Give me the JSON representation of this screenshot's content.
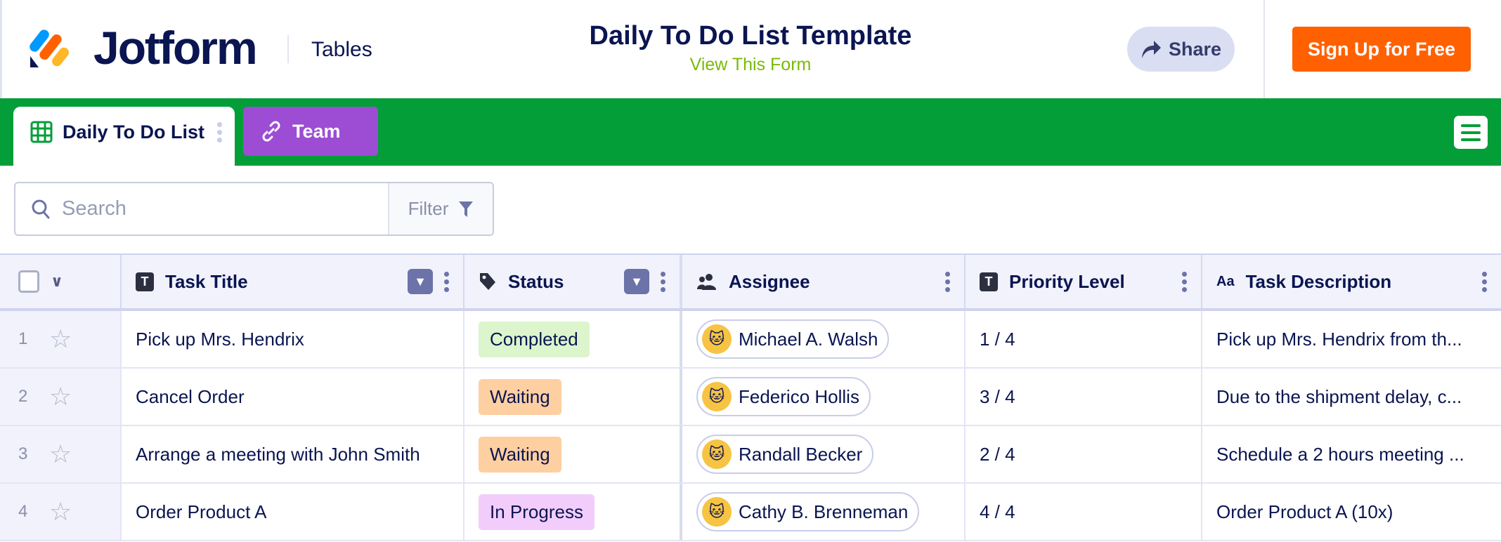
{
  "header": {
    "brand": "Jotform",
    "product": "Tables",
    "title": "Daily To Do List Template",
    "subtitle": "View This Form",
    "share": "Share",
    "signup": "Sign Up for Free"
  },
  "tabs": [
    {
      "label": "Daily To Do List",
      "icon": "grid-icon"
    },
    {
      "label": "Team",
      "icon": "link-icon"
    }
  ],
  "toolbar": {
    "search_placeholder": "Search",
    "filter": "Filter"
  },
  "colors": {
    "green": "#049e38",
    "purple": "#9c4dd3",
    "orange": "#ff6100",
    "completed": "#dcf5cc",
    "waiting": "#fecfa1",
    "in_progress": "#f2cdfb"
  },
  "table": {
    "columns": [
      "Task Title",
      "Status",
      "Assignee",
      "Priority Level",
      "Task Description"
    ],
    "rows": [
      {
        "n": "1",
        "title": "Pick up Mrs. Hendrix",
        "status": "Completed",
        "assignee": "Michael A. Walsh",
        "priority": "1 / 4",
        "desc": "Pick up Mrs. Hendrix from th..."
      },
      {
        "n": "2",
        "title": "Cancel Order",
        "status": "Waiting",
        "assignee": "Federico Hollis",
        "priority": "3 / 4",
        "desc": "Due to the shipment delay, c..."
      },
      {
        "n": "3",
        "title": "Arrange a meeting with John Smith",
        "status": "Waiting",
        "assignee": "Randall Becker",
        "priority": "2 / 4",
        "desc": "Schedule a 2 hours meeting ..."
      },
      {
        "n": "4",
        "title": "Order Product A",
        "status": "In Progress",
        "assignee": "Cathy B. Brenneman",
        "priority": "4 / 4",
        "desc": "Order Product A (10x)"
      }
    ]
  }
}
